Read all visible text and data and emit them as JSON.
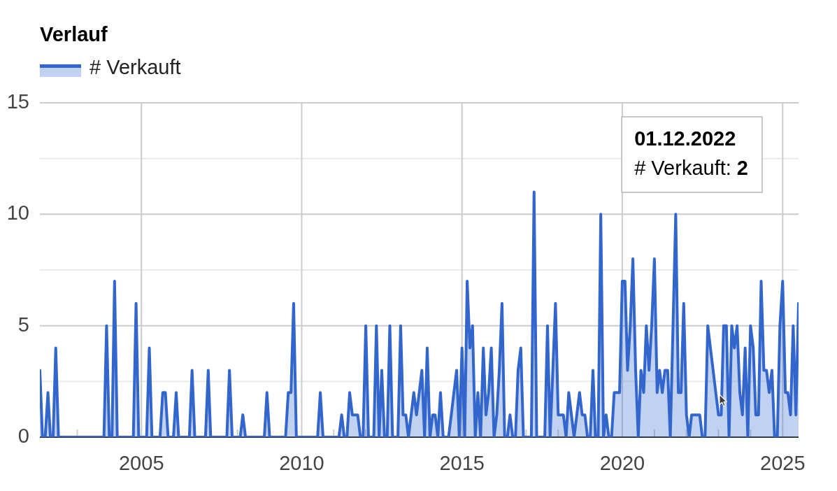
{
  "chart_data": {
    "type": "area",
    "title": "Verlauf",
    "legend": "top left",
    "grid": true,
    "series": [
      {
        "name": "# Verkauft",
        "color": "#3366cc",
        "x": [
          "2001-11",
          "2001-12",
          "2002-01",
          "2002-02",
          "2002-03",
          "2002-04",
          "2002-05",
          "2002-06",
          "2003-11",
          "2003-12",
          "2004-01",
          "2004-02",
          "2004-03",
          "2004-04",
          "2004-10",
          "2004-11",
          "2004-12",
          "2005-03",
          "2005-04",
          "2005-05",
          "2005-08",
          "2005-09",
          "2005-10",
          "2005-11",
          "2006-01",
          "2006-02",
          "2006-03",
          "2006-07",
          "2006-08",
          "2006-09",
          "2007-01",
          "2007-02",
          "2007-03",
          "2007-09",
          "2007-10",
          "2007-11",
          "2008-02",
          "2008-03",
          "2008-04",
          "2008-11",
          "2008-12",
          "2009-01",
          "2009-07",
          "2009-08",
          "2009-09",
          "2009-10",
          "2009-11",
          "2010-07",
          "2010-08",
          "2010-09",
          "2011-03",
          "2011-04",
          "2011-05",
          "2011-06",
          "2011-07",
          "2011-08",
          "2011-09",
          "2011-10",
          "2011-11",
          "2011-12",
          "2012-01",
          "2012-02",
          "2012-04",
          "2012-05",
          "2012-06",
          "2012-07",
          "2012-08",
          "2012-09",
          "2012-10",
          "2012-11",
          "2013-01",
          "2013-02",
          "2013-03",
          "2013-04",
          "2013-05",
          "2013-06",
          "2013-07",
          "2013-08",
          "2013-09",
          "2013-10",
          "2013-11",
          "2013-12",
          "2014-01",
          "2014-02",
          "2014-03",
          "2014-04",
          "2014-05",
          "2014-06",
          "2014-08",
          "2014-09",
          "2014-10",
          "2014-11",
          "2014-12",
          "2015-01",
          "2015-02",
          "2015-03",
          "2015-04",
          "2015-05",
          "2015-06",
          "2015-07",
          "2015-08",
          "2015-09",
          "2015-10",
          "2015-11",
          "2015-12",
          "2016-01",
          "2016-02",
          "2016-03",
          "2016-04",
          "2016-05",
          "2016-06",
          "2016-07",
          "2016-08",
          "2016-09",
          "2016-10",
          "2016-11",
          "2016-12",
          "2017-03",
          "2017-04",
          "2017-05",
          "2017-08",
          "2017-09",
          "2017-10",
          "2017-11",
          "2017-12",
          "2018-01",
          "2018-02",
          "2018-03",
          "2018-04",
          "2018-05",
          "2018-06",
          "2018-07",
          "2018-08",
          "2018-09",
          "2018-10",
          "2018-11",
          "2018-12",
          "2019-01",
          "2019-02",
          "2019-03",
          "2019-04",
          "2019-05",
          "2019-06",
          "2019-07",
          "2019-08",
          "2019-09",
          "2019-10",
          "2019-11",
          "2019-12",
          "2020-01",
          "2020-02",
          "2020-03",
          "2020-04",
          "2020-05",
          "2020-06",
          "2020-07",
          "2020-08",
          "2020-09",
          "2020-10",
          "2020-11",
          "2020-12",
          "2021-01",
          "2021-02",
          "2021-03",
          "2021-04",
          "2021-05",
          "2021-06",
          "2021-07",
          "2021-08",
          "2021-09",
          "2021-10",
          "2021-11",
          "2021-12",
          "2022-01",
          "2022-02",
          "2022-03",
          "2022-04",
          "2022-05",
          "2022-06",
          "2022-07",
          "2022-08",
          "2022-09",
          "2022-10",
          "2022-11",
          "2022-12",
          "2023-01",
          "2023-02",
          "2023-03",
          "2023-04",
          "2023-05",
          "2023-06",
          "2023-07",
          "2023-08",
          "2023-09",
          "2023-10",
          "2023-11",
          "2023-12",
          "2024-01",
          "2024-02",
          "2024-03",
          "2024-04",
          "2024-05",
          "2024-06",
          "2024-07",
          "2024-08",
          "2024-09",
          "2024-10",
          "2024-11",
          "2024-12",
          "2025-01",
          "2025-02",
          "2025-03",
          "2025-04",
          "2025-05",
          "2025-06",
          "2025-07"
        ],
        "values": [
          3,
          0,
          0,
          2,
          0,
          0,
          4,
          0,
          0,
          5,
          0,
          0,
          7,
          0,
          0,
          6,
          0,
          0,
          4,
          0,
          0,
          2,
          2,
          0,
          0,
          2,
          0,
          0,
          3,
          0,
          0,
          3,
          0,
          0,
          3,
          0,
          0,
          1,
          0,
          0,
          2,
          0,
          0,
          2,
          2,
          6,
          0,
          0,
          2,
          0,
          0,
          1,
          0,
          0,
          2,
          1,
          1,
          1,
          0,
          0,
          5,
          0,
          0,
          5,
          0,
          3,
          0,
          0,
          5,
          0,
          0,
          5,
          1,
          1,
          0,
          1,
          2,
          1,
          2,
          3,
          0,
          4,
          0,
          1,
          1,
          0,
          2,
          0,
          0,
          1,
          2,
          3,
          0,
          4,
          0,
          7,
          4,
          5,
          0,
          2,
          0,
          4,
          1,
          2,
          4,
          0,
          1,
          3,
          6,
          0,
          0,
          1,
          0,
          0,
          3,
          4,
          0,
          0,
          11,
          0,
          0,
          5,
          0,
          3,
          6,
          1,
          1,
          1,
          0,
          2,
          1,
          0,
          1,
          2,
          1,
          1,
          0,
          0,
          3,
          0,
          0,
          10,
          0,
          1,
          0,
          0,
          2,
          2,
          2,
          7,
          7,
          3,
          5,
          8,
          3,
          0,
          3,
          2,
          5,
          3,
          5,
          8,
          2,
          3,
          2,
          3,
          3,
          0,
          5,
          10,
          2,
          2,
          6,
          1,
          0,
          1,
          1,
          1,
          1,
          0,
          0,
          5,
          4,
          3,
          2,
          1,
          1,
          5,
          5,
          0,
          5,
          4,
          5,
          2,
          1,
          4,
          0,
          5,
          4,
          1,
          1,
          7,
          3,
          3,
          2,
          3,
          0,
          0,
          5,
          7,
          2,
          2,
          1,
          5,
          1,
          6
        ]
      }
    ],
    "xlim": [
      "2001-11",
      "2025-07"
    ],
    "xticks": [
      {
        "value": "2002",
        "label": null
      },
      {
        "value": "2003",
        "label": null
      },
      {
        "value": "2004",
        "label": null
      },
      "2005",
      {
        "value": "2006",
        "label": null
      },
      {
        "value": "2007",
        "label": null
      },
      {
        "value": "2008",
        "label": null
      },
      {
        "value": "2009",
        "label": null
      },
      "2010",
      {
        "value": "2011",
        "label": null
      },
      {
        "value": "2012",
        "label": null
      },
      {
        "value": "2013",
        "label": null
      },
      {
        "value": "2014",
        "label": null
      },
      "2015",
      {
        "value": "2016",
        "label": null
      },
      {
        "value": "2017",
        "label": null
      },
      {
        "value": "2018",
        "label": null
      },
      {
        "value": "2019",
        "label": null
      },
      "2020",
      {
        "value": "2021",
        "label": null
      },
      {
        "value": "2022",
        "label": null
      },
      {
        "value": "2023",
        "label": null
      },
      {
        "value": "2024",
        "label": null
      },
      "2025"
    ],
    "ylim": [
      0,
      15
    ],
    "yticks": [
      0,
      {
        "value": 2.5,
        "label": null
      },
      5,
      {
        "value": 7.5,
        "label": null
      },
      10,
      {
        "value": 12.5,
        "label": null
      },
      15
    ],
    "annotations": [
      "01.12.2022\n# Verkauft: 2"
    ]
  }
}
